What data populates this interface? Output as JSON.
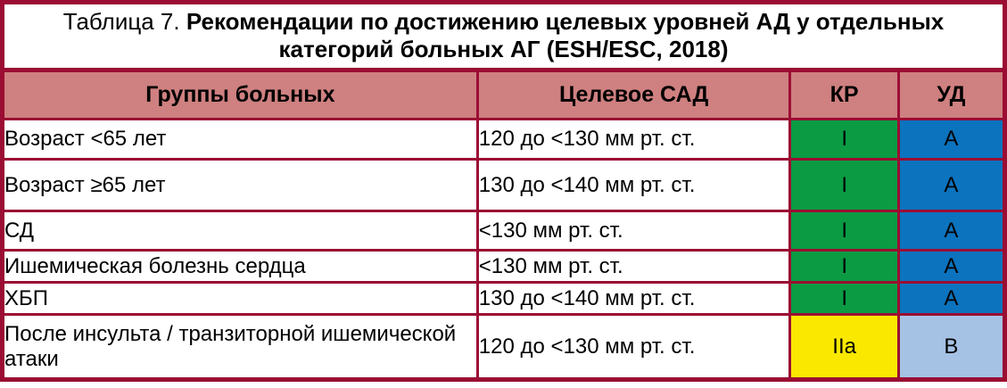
{
  "table": {
    "title_prefix": "Таблица 7.",
    "title_main": "Рекомендации по достижению целевых уровней АД у отдельных категорий больных АГ (ESH/ESC, 2018)",
    "columns": [
      "Группы больных",
      "Целевое САД",
      "КР",
      "УД"
    ],
    "rows": [
      {
        "group": "Возраст <65 лет",
        "target": "120 до <130 мм рт. ст.",
        "kr": "I",
        "ud": "A",
        "kr_color": "#0A9B43",
        "ud_color": "#0C73BE"
      },
      {
        "group": "Возраст ≥65 лет",
        "target": "130 до <140 мм рт. ст.",
        "kr": "I",
        "ud": "A",
        "kr_color": "#0A9B43",
        "ud_color": "#0C73BE"
      },
      {
        "group": "СД",
        "target": "<130 мм рт. ст.",
        "kr": "I",
        "ud": "A",
        "kr_color": "#0A9B43",
        "ud_color": "#0C73BE"
      },
      {
        "group": "Ишемическая болезнь сердца",
        "target": "<130 мм рт. ст.",
        "kr": "I",
        "ud": "A",
        "kr_color": "#0A9B43",
        "ud_color": "#0C73BE"
      },
      {
        "group": "ХБП",
        "target": "130 до <140 мм рт. ст.",
        "kr": "I",
        "ud": "A",
        "kr_color": "#0A9B43",
        "ud_color": "#0C73BE"
      },
      {
        "group": "После инсульта / транзиторной ишемической атаки",
        "target": "120 до <130 мм рт. ст.",
        "kr": "IIa",
        "ud": "B",
        "kr_color": "#FAE800",
        "ud_color": "#A5C2E5"
      }
    ]
  },
  "colors": {
    "border": "#9B0D33",
    "header_bg": "#CF8080",
    "title_bg": "#FFFFFF",
    "text": "#000000"
  }
}
